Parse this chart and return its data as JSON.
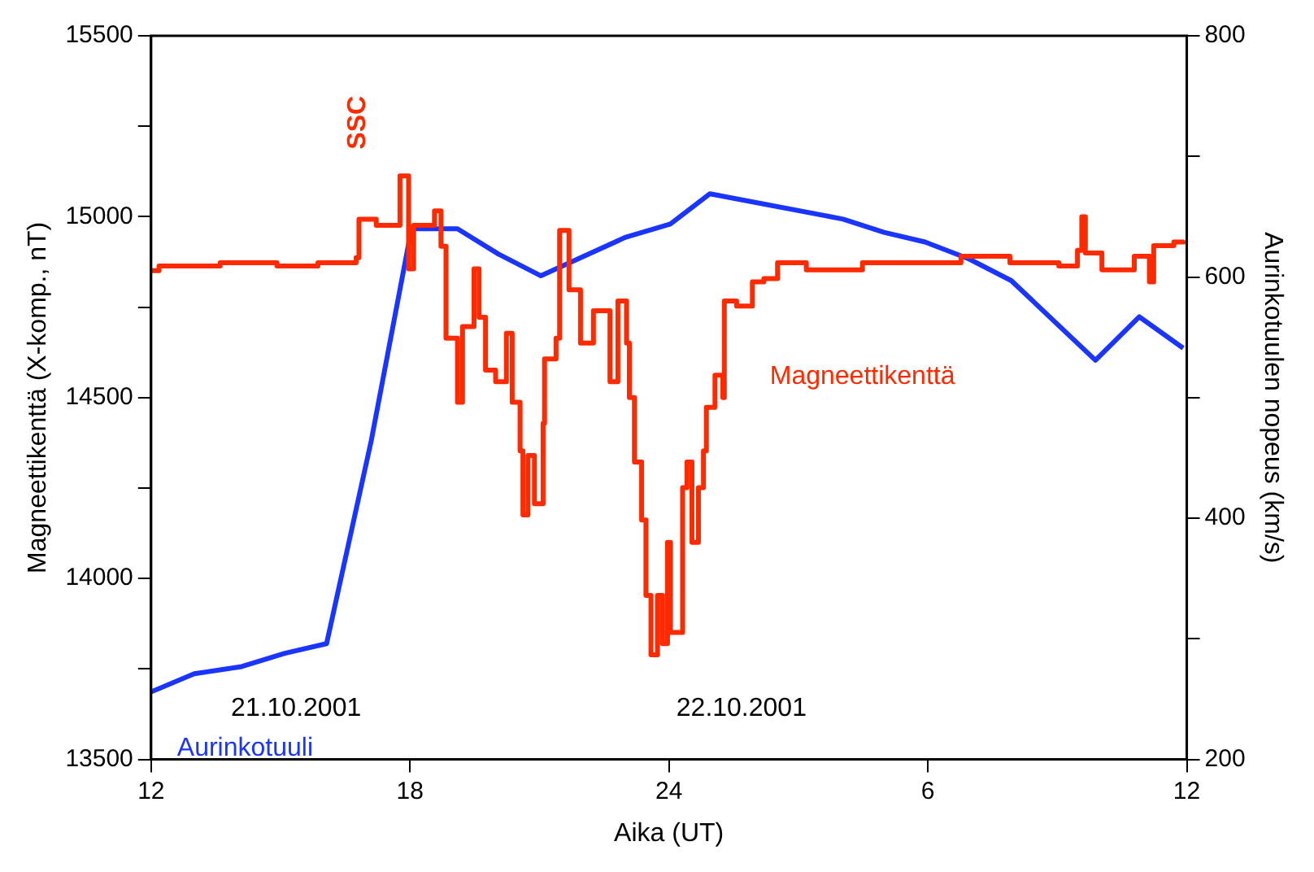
{
  "chart_data": {
    "type": "line",
    "xlabel": "Aika (UT)",
    "ylabel": "Magneettikenttä (X-komp., nT)",
    "y2label": "Aurinkotuulen nopeus (km/s)",
    "xlim": [
      "2001-10-21T12:00",
      "2001-10-22T12:00"
    ],
    "xticks": [
      {
        "value": "2001-10-21T12:00",
        "label": "12"
      },
      {
        "value": "2001-10-21T18:00",
        "label": "18"
      },
      {
        "value": "2001-10-22T00:00",
        "label": "24"
      },
      {
        "value": "2001-10-22T06:00",
        "label": "6"
      },
      {
        "value": "2001-10-22T12:00",
        "label": "12"
      }
    ],
    "ylim": [
      13500,
      15500
    ],
    "yticks": [
      13500,
      {
        "value": 13750,
        "label": null
      },
      14000,
      {
        "value": 14250,
        "label": null
      },
      14500,
      {
        "value": 14750,
        "label": null
      },
      15000,
      {
        "value": 15250,
        "label": null
      },
      15500
    ],
    "y2lim": [
      200,
      800
    ],
    "y2ticks": [
      200,
      {
        "value": 300,
        "label": null
      },
      400,
      {
        "value": 500,
        "label": null
      },
      600,
      {
        "value": 700,
        "label": null
      },
      800
    ],
    "grid": false,
    "legend": false,
    "marker": "none",
    "line_style": "solid",
    "annotations": [
      "SSC",
      "21.10.2001",
      "22.10.2001"
    ],
    "series": [
      {
        "name": "Magneettikenttä",
        "color": "#ff2a00",
        "type": "step",
        "x": [
          "2001-10-21T12:00",
          "2001-10-21T12:11",
          "2001-10-21T13:36",
          "2001-10-21T14:55",
          "2001-10-21T15:52",
          "2001-10-21T16:45",
          "2001-10-21T16:49",
          "2001-10-21T17:13",
          "2001-10-21T17:46",
          "2001-10-21T17:58",
          "2001-10-21T18:05",
          "2001-10-21T18:34",
          "2001-10-21T18:43",
          "2001-10-21T18:50",
          "2001-10-21T19:06",
          "2001-10-21T19:13",
          "2001-10-21T19:29",
          "2001-10-21T19:36",
          "2001-10-21T19:45",
          "2001-10-21T19:59",
          "2001-10-21T20:14",
          "2001-10-21T20:22",
          "2001-10-21T20:33",
          "2001-10-21T20:37",
          "2001-10-21T20:44",
          "2001-10-21T20:53",
          "2001-10-21T21:05",
          "2001-10-21T21:07",
          "2001-10-21T21:23",
          "2001-10-21T21:28",
          "2001-10-21T21:41",
          "2001-10-21T21:57",
          "2001-10-21T22:15",
          "2001-10-21T22:38",
          "2001-10-21T22:49",
          "2001-10-21T23:01",
          "2001-10-21T23:05",
          "2001-10-21T23:12",
          "2001-10-21T23:22",
          "2001-10-21T23:28",
          "2001-10-21T23:35",
          "2001-10-21T23:44",
          "2001-10-21T23:51",
          "2001-10-21T23:58",
          "2001-10-22T00:02",
          "2001-10-22T00:19",
          "2001-10-22T00:25",
          "2001-10-22T00:32",
          "2001-10-22T00:41",
          "2001-10-22T00:48",
          "2001-10-22T00:52",
          "2001-10-22T01:04",
          "2001-10-22T01:15",
          "2001-10-22T01:17",
          "2001-10-22T01:34",
          "2001-10-22T01:56",
          "2001-10-22T02:12",
          "2001-10-22T02:31",
          "2001-10-22T03:11",
          "2001-10-22T04:29",
          "2001-10-22T05:44",
          "2001-10-22T06:46",
          "2001-10-22T07:54",
          "2001-10-22T09:02",
          "2001-10-22T09:28",
          "2001-10-22T09:34",
          "2001-10-22T09:39",
          "2001-10-22T10:02",
          "2001-10-22T10:47",
          "2001-10-22T11:08",
          "2001-10-22T11:14",
          "2001-10-22T11:42",
          "2001-10-22T11:56"
        ],
        "values": [
          14851,
          14864,
          14873,
          14864,
          14873,
          14887,
          14993,
          14976,
          15113,
          14856,
          14976,
          15016,
          14918,
          14664,
          14487,
          14696,
          14856,
          14722,
          14576,
          14544,
          14678,
          14487,
          14353,
          14176,
          14340,
          14207,
          14429,
          14607,
          14664,
          14962,
          14798,
          14651,
          14740,
          14544,
          14767,
          14651,
          14500,
          14322,
          14162,
          13953,
          13789,
          13953,
          13820,
          14100,
          13851,
          14251,
          14322,
          14100,
          14251,
          14353,
          14473,
          14562,
          14500,
          14767,
          14753,
          14820,
          14829,
          14873,
          14853,
          14873,
          14873,
          14891,
          14873,
          14864,
          14907,
          15000,
          14900,
          14853,
          14891,
          14820,
          14920,
          14930,
          14935
        ]
      },
      {
        "name": "Aurinkotuuli",
        "color": "#1a35ff",
        "type": "line",
        "axis": "y2",
        "x": [
          "2001-10-21T12:00",
          "2001-10-21T13:00",
          "2001-10-21T14:06",
          "2001-10-21T15:06",
          "2001-10-21T16:04",
          "2001-10-21T17:06",
          "2001-10-21T18:02",
          "2001-10-21T19:06",
          "2001-10-21T20:03",
          "2001-10-21T21:02",
          "2001-10-21T23:00",
          "2001-10-22T00:02",
          "2001-10-22T00:57",
          "2001-10-22T04:02",
          "2001-10-22T04:59",
          "2001-10-22T05:56",
          "2001-10-22T06:57",
          "2001-10-22T07:56",
          "2001-10-22T09:53",
          "2001-10-22T10:54",
          "2001-10-22T11:55"
        ],
        "values": [
          256,
          271,
          277,
          288,
          296,
          464,
          640,
          640,
          619,
          601,
          633,
          644,
          669,
          648,
          637,
          629,
          615,
          597,
          531,
          567,
          541
        ]
      }
    ]
  }
}
